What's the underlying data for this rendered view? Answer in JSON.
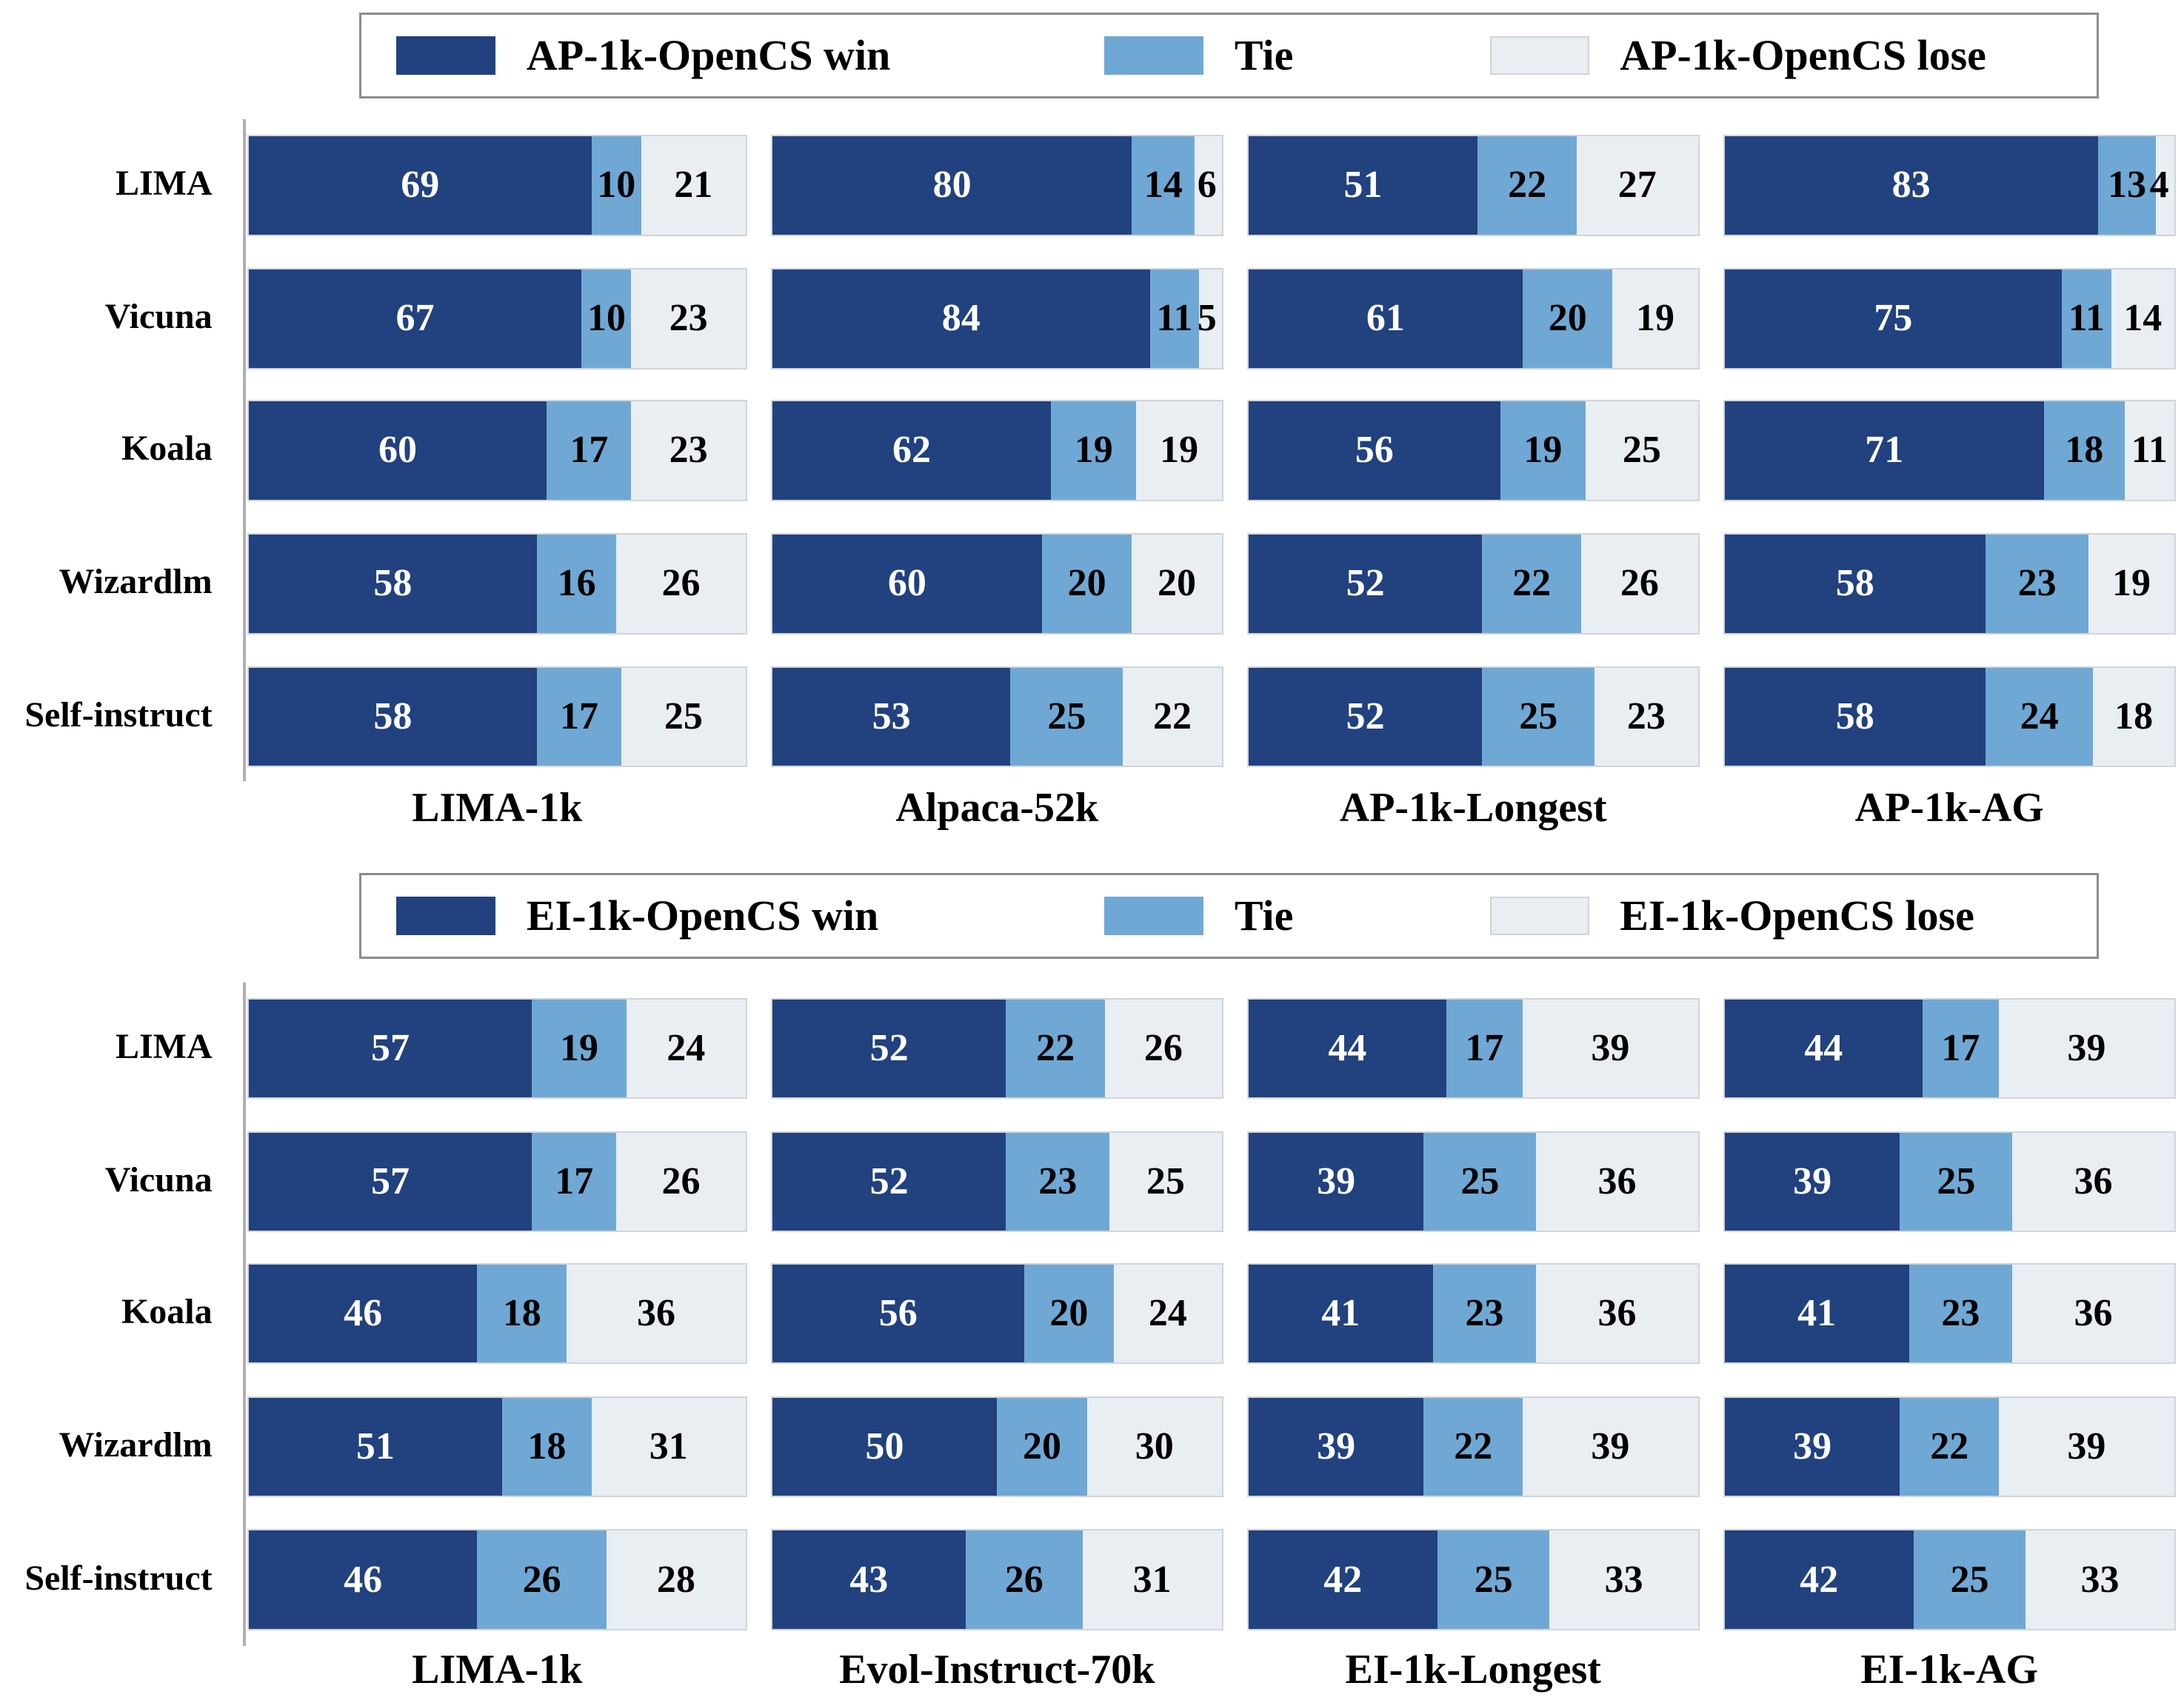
{
  "colors": {
    "win": "#21417f",
    "tie": "#6fa8d4",
    "lose": "#e9eef3",
    "win_text": "#ffffff",
    "other_text": "#000000"
  },
  "chart_data": [
    {
      "type": "bar",
      "orientation": "horizontal-stacked-100",
      "legend": {
        "placement": "top",
        "entries": [
          "AP-1k-OpenCS win",
          "Tie",
          "AP-1k-OpenCS lose"
        ]
      },
      "categories": [
        "LIMA",
        "Vicuna",
        "Koala",
        "Wizardlm",
        "Self-instruct"
      ],
      "panels": [
        {
          "title": "LIMA-1k",
          "series": [
            {
              "name": "AP-1k-OpenCS win",
              "values": [
                69,
                67,
                60,
                58,
                58
              ]
            },
            {
              "name": "Tie",
              "values": [
                10,
                10,
                17,
                16,
                17
              ]
            },
            {
              "name": "AP-1k-OpenCS lose",
              "values": [
                21,
                23,
                23,
                26,
                25
              ]
            }
          ]
        },
        {
          "title": "Alpaca-52k",
          "series": [
            {
              "name": "AP-1k-OpenCS win",
              "values": [
                80,
                84,
                62,
                60,
                53
              ]
            },
            {
              "name": "Tie",
              "values": [
                14,
                11,
                19,
                20,
                25
              ]
            },
            {
              "name": "AP-1k-OpenCS lose",
              "values": [
                6,
                5,
                19,
                20,
                22
              ]
            }
          ]
        },
        {
          "title": "AP-1k-Longest",
          "series": [
            {
              "name": "AP-1k-OpenCS win",
              "values": [
                51,
                61,
                56,
                52,
                52
              ]
            },
            {
              "name": "Tie",
              "values": [
                22,
                20,
                19,
                22,
                25
              ]
            },
            {
              "name": "AP-1k-OpenCS lose",
              "values": [
                27,
                19,
                25,
                26,
                23
              ]
            }
          ]
        },
        {
          "title": "AP-1k-AG",
          "series": [
            {
              "name": "AP-1k-OpenCS win",
              "values": [
                83,
                75,
                71,
                58,
                58
              ]
            },
            {
              "name": "Tie",
              "values": [
                13,
                11,
                18,
                23,
                24
              ]
            },
            {
              "name": "AP-1k-OpenCS lose",
              "values": [
                4,
                14,
                11,
                19,
                18
              ]
            }
          ]
        }
      ]
    },
    {
      "type": "bar",
      "orientation": "horizontal-stacked-100",
      "legend": {
        "placement": "top",
        "entries": [
          "EI-1k-OpenCS win",
          "Tie",
          "EI-1k-OpenCS lose"
        ]
      },
      "categories": [
        "LIMA",
        "Vicuna",
        "Koala",
        "Wizardlm",
        "Self-instruct"
      ],
      "panels": [
        {
          "title": "LIMA-1k",
          "series": [
            {
              "name": "EI-1k-OpenCS win",
              "values": [
                57,
                57,
                46,
                51,
                46
              ]
            },
            {
              "name": "Tie",
              "values": [
                19,
                17,
                18,
                18,
                26
              ]
            },
            {
              "name": "EI-1k-OpenCS lose",
              "values": [
                24,
                26,
                36,
                31,
                28
              ]
            }
          ]
        },
        {
          "title": "Evol-Instruct-70k",
          "series": [
            {
              "name": "EI-1k-OpenCS win",
              "values": [
                52,
                52,
                56,
                50,
                43
              ]
            },
            {
              "name": "Tie",
              "values": [
                22,
                23,
                20,
                20,
                26
              ]
            },
            {
              "name": "EI-1k-OpenCS lose",
              "values": [
                26,
                25,
                24,
                30,
                31
              ]
            }
          ]
        },
        {
          "title": "EI-1k-Longest",
          "series": [
            {
              "name": "EI-1k-OpenCS win",
              "values": [
                44,
                39,
                41,
                39,
                42
              ]
            },
            {
              "name": "Tie",
              "values": [
                17,
                25,
                23,
                22,
                25
              ]
            },
            {
              "name": "EI-1k-OpenCS lose",
              "values": [
                39,
                36,
                36,
                39,
                33
              ]
            }
          ]
        },
        {
          "title": "EI-1k-AG",
          "series": [
            {
              "name": "EI-1k-OpenCS win",
              "values": [
                44,
                39,
                41,
                39,
                42
              ]
            },
            {
              "name": "Tie",
              "values": [
                17,
                25,
                23,
                22,
                25
              ]
            },
            {
              "name": "EI-1k-OpenCS lose",
              "values": [
                39,
                36,
                36,
                39,
                33
              ]
            }
          ]
        }
      ]
    }
  ]
}
